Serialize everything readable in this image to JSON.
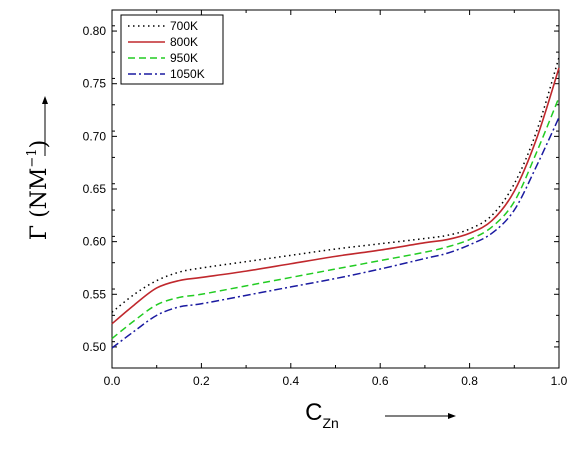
{
  "chart_data": {
    "type": "line",
    "title": "",
    "xlabel": {
      "main": "C",
      "sub": "Zn"
    },
    "ylabel": {
      "main": "Γ (NM",
      "sup": "−1",
      "close": ")"
    },
    "xlim": [
      0.0,
      1.0
    ],
    "ylim": [
      0.48,
      0.82
    ],
    "x_ticks": [
      0.0,
      0.2,
      0.4,
      0.6,
      0.8,
      1.0
    ],
    "x_tick_labels": [
      "0.0",
      "0.2",
      "0.4",
      "0.6",
      "0.8",
      "1.0"
    ],
    "y_ticks": [
      0.5,
      0.55,
      0.6,
      0.65,
      0.7,
      0.75,
      0.8
    ],
    "y_tick_labels": [
      "0.50",
      "0.55",
      "0.60",
      "0.65",
      "0.70",
      "0.75",
      "0.80"
    ],
    "grid": false,
    "legend_position": "top-left",
    "x": [
      0.0,
      0.05,
      0.1,
      0.15,
      0.2,
      0.3,
      0.4,
      0.5,
      0.6,
      0.7,
      0.75,
      0.8,
      0.85,
      0.9,
      0.95,
      1.0
    ],
    "series": [
      {
        "name": "700K",
        "color": "#000000",
        "dash": "dotted",
        "values": [
          0.533,
          0.55,
          0.563,
          0.571,
          0.575,
          0.581,
          0.587,
          0.593,
          0.598,
          0.603,
          0.606,
          0.612,
          0.625,
          0.655,
          0.705,
          0.775
        ]
      },
      {
        "name": "800K",
        "color": "#c0282d",
        "dash": "solid",
        "values": [
          0.522,
          0.54,
          0.556,
          0.563,
          0.566,
          0.572,
          0.579,
          0.586,
          0.592,
          0.599,
          0.602,
          0.608,
          0.62,
          0.648,
          0.698,
          0.765
        ]
      },
      {
        "name": "950K",
        "color": "#22cc22",
        "dash": "dashed",
        "values": [
          0.508,
          0.525,
          0.54,
          0.547,
          0.55,
          0.558,
          0.566,
          0.574,
          0.582,
          0.59,
          0.595,
          0.602,
          0.614,
          0.638,
          0.685,
          0.737
        ]
      },
      {
        "name": "1050K",
        "color": "#1a1aa0",
        "dash": "dashdot",
        "values": [
          0.499,
          0.515,
          0.53,
          0.538,
          0.541,
          0.549,
          0.557,
          0.565,
          0.574,
          0.584,
          0.589,
          0.597,
          0.608,
          0.63,
          0.672,
          0.718
        ]
      }
    ]
  }
}
